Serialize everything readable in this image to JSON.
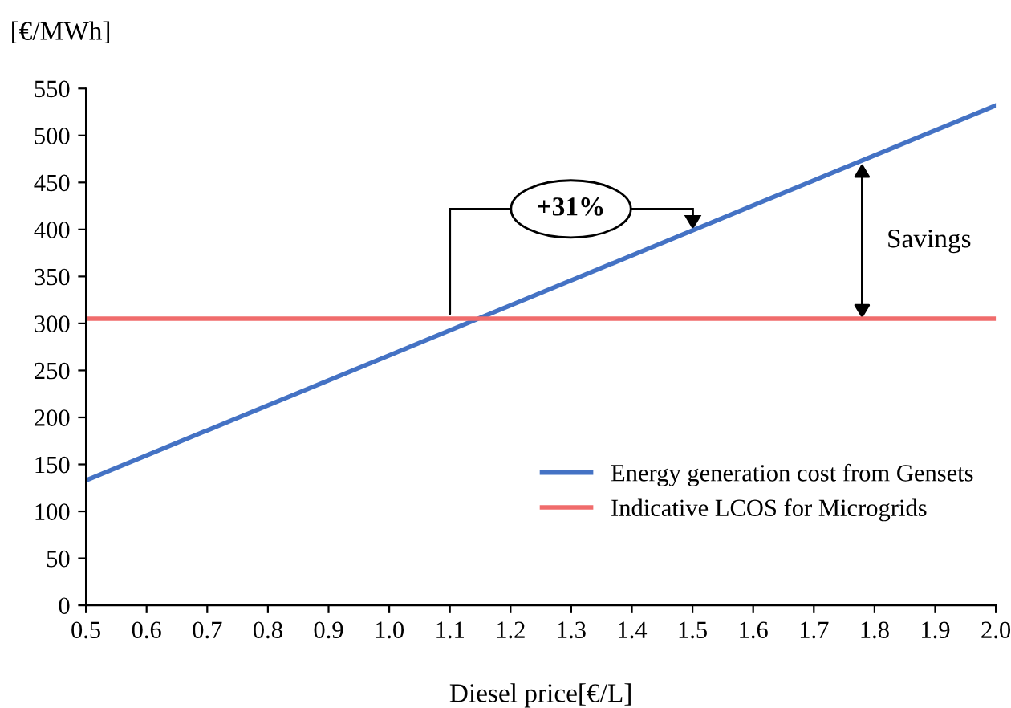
{
  "chart_data": {
    "type": "line",
    "xlabel": "Diesel price[€/L]",
    "ylabel": "[€/MWh]",
    "x": [
      0.5,
      2.0
    ],
    "series": [
      {
        "name": "Energy generation cost from Gensets",
        "color": "#4472c4",
        "values": [
          133,
          532
        ]
      },
      {
        "name": "Indicative LCOS for Microgrids",
        "color": "#f06c6c",
        "values": [
          305,
          305
        ]
      }
    ],
    "xlim": [
      0.5,
      2.0
    ],
    "ylim": [
      0,
      550
    ],
    "xticks": [
      0.5,
      0.6,
      0.7,
      0.8,
      0.9,
      {
        "value": 1.0,
        "label": "1.0"
      },
      1.1,
      1.2,
      1.3,
      1.4,
      1.5,
      1.6,
      1.7,
      1.8,
      1.9,
      {
        "value": 2.0,
        "label": "2.0"
      }
    ],
    "yticks": [
      0,
      50,
      100,
      150,
      200,
      250,
      300,
      350,
      400,
      450,
      500,
      550
    ],
    "annotations": [
      "+31%",
      "Savings"
    ],
    "grid": false,
    "legend": "bottom right",
    "line_style": "solid",
    "marker": "none"
  }
}
